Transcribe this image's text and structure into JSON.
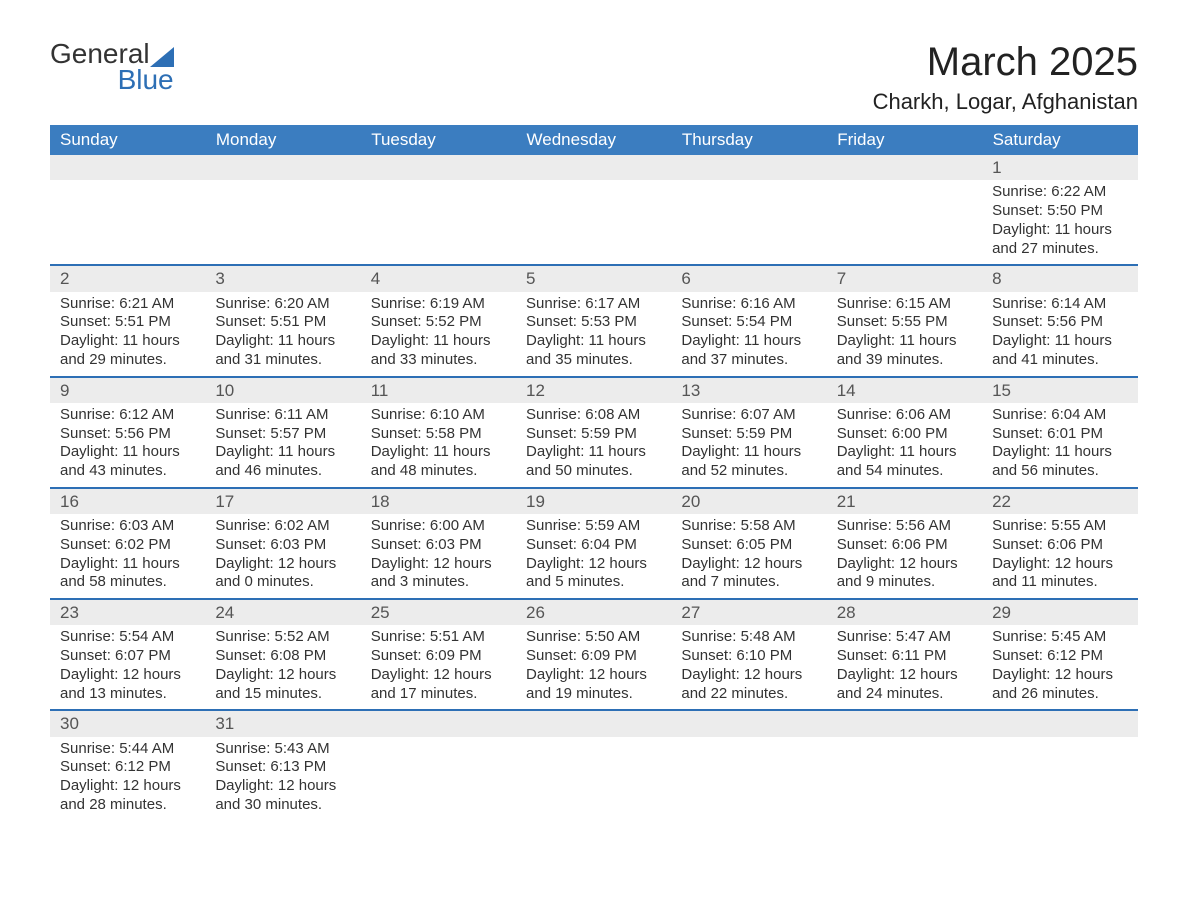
{
  "brand": {
    "general": "General",
    "blue": "Blue",
    "accent": "#2d6fb5"
  },
  "title": "March 2025",
  "location": "Charkh, Logar, Afghanistan",
  "weekdays": [
    "Sunday",
    "Monday",
    "Tuesday",
    "Wednesday",
    "Thursday",
    "Friday",
    "Saturday"
  ],
  "colors": {
    "header_bg": "#3b7dc0",
    "header_text": "#ffffff",
    "row_separator": "#2d6fb5",
    "daynum_bg": "#ececec",
    "text": "#333333",
    "background": "#ffffff"
  },
  "typography": {
    "title_fontsize": 40,
    "location_fontsize": 22,
    "weekday_fontsize": 17,
    "daynum_fontsize": 17,
    "cell_fontsize": 15
  },
  "weeks": [
    {
      "nums": [
        "",
        "",
        "",
        "",
        "",
        "",
        "1"
      ],
      "cells": [
        null,
        null,
        null,
        null,
        null,
        null,
        {
          "sunrise": "Sunrise: 6:22 AM",
          "sunset": "Sunset: 5:50 PM",
          "dl1": "Daylight: 11 hours",
          "dl2": "and 27 minutes."
        }
      ]
    },
    {
      "nums": [
        "2",
        "3",
        "4",
        "5",
        "6",
        "7",
        "8"
      ],
      "cells": [
        {
          "sunrise": "Sunrise: 6:21 AM",
          "sunset": "Sunset: 5:51 PM",
          "dl1": "Daylight: 11 hours",
          "dl2": "and 29 minutes."
        },
        {
          "sunrise": "Sunrise: 6:20 AM",
          "sunset": "Sunset: 5:51 PM",
          "dl1": "Daylight: 11 hours",
          "dl2": "and 31 minutes."
        },
        {
          "sunrise": "Sunrise: 6:19 AM",
          "sunset": "Sunset: 5:52 PM",
          "dl1": "Daylight: 11 hours",
          "dl2": "and 33 minutes."
        },
        {
          "sunrise": "Sunrise: 6:17 AM",
          "sunset": "Sunset: 5:53 PM",
          "dl1": "Daylight: 11 hours",
          "dl2": "and 35 minutes."
        },
        {
          "sunrise": "Sunrise: 6:16 AM",
          "sunset": "Sunset: 5:54 PM",
          "dl1": "Daylight: 11 hours",
          "dl2": "and 37 minutes."
        },
        {
          "sunrise": "Sunrise: 6:15 AM",
          "sunset": "Sunset: 5:55 PM",
          "dl1": "Daylight: 11 hours",
          "dl2": "and 39 minutes."
        },
        {
          "sunrise": "Sunrise: 6:14 AM",
          "sunset": "Sunset: 5:56 PM",
          "dl1": "Daylight: 11 hours",
          "dl2": "and 41 minutes."
        }
      ]
    },
    {
      "nums": [
        "9",
        "10",
        "11",
        "12",
        "13",
        "14",
        "15"
      ],
      "cells": [
        {
          "sunrise": "Sunrise: 6:12 AM",
          "sunset": "Sunset: 5:56 PM",
          "dl1": "Daylight: 11 hours",
          "dl2": "and 43 minutes."
        },
        {
          "sunrise": "Sunrise: 6:11 AM",
          "sunset": "Sunset: 5:57 PM",
          "dl1": "Daylight: 11 hours",
          "dl2": "and 46 minutes."
        },
        {
          "sunrise": "Sunrise: 6:10 AM",
          "sunset": "Sunset: 5:58 PM",
          "dl1": "Daylight: 11 hours",
          "dl2": "and 48 minutes."
        },
        {
          "sunrise": "Sunrise: 6:08 AM",
          "sunset": "Sunset: 5:59 PM",
          "dl1": "Daylight: 11 hours",
          "dl2": "and 50 minutes."
        },
        {
          "sunrise": "Sunrise: 6:07 AM",
          "sunset": "Sunset: 5:59 PM",
          "dl1": "Daylight: 11 hours",
          "dl2": "and 52 minutes."
        },
        {
          "sunrise": "Sunrise: 6:06 AM",
          "sunset": "Sunset: 6:00 PM",
          "dl1": "Daylight: 11 hours",
          "dl2": "and 54 minutes."
        },
        {
          "sunrise": "Sunrise: 6:04 AM",
          "sunset": "Sunset: 6:01 PM",
          "dl1": "Daylight: 11 hours",
          "dl2": "and 56 minutes."
        }
      ]
    },
    {
      "nums": [
        "16",
        "17",
        "18",
        "19",
        "20",
        "21",
        "22"
      ],
      "cells": [
        {
          "sunrise": "Sunrise: 6:03 AM",
          "sunset": "Sunset: 6:02 PM",
          "dl1": "Daylight: 11 hours",
          "dl2": "and 58 minutes."
        },
        {
          "sunrise": "Sunrise: 6:02 AM",
          "sunset": "Sunset: 6:03 PM",
          "dl1": "Daylight: 12 hours",
          "dl2": "and 0 minutes."
        },
        {
          "sunrise": "Sunrise: 6:00 AM",
          "sunset": "Sunset: 6:03 PM",
          "dl1": "Daylight: 12 hours",
          "dl2": "and 3 minutes."
        },
        {
          "sunrise": "Sunrise: 5:59 AM",
          "sunset": "Sunset: 6:04 PM",
          "dl1": "Daylight: 12 hours",
          "dl2": "and 5 minutes."
        },
        {
          "sunrise": "Sunrise: 5:58 AM",
          "sunset": "Sunset: 6:05 PM",
          "dl1": "Daylight: 12 hours",
          "dl2": "and 7 minutes."
        },
        {
          "sunrise": "Sunrise: 5:56 AM",
          "sunset": "Sunset: 6:06 PM",
          "dl1": "Daylight: 12 hours",
          "dl2": "and 9 minutes."
        },
        {
          "sunrise": "Sunrise: 5:55 AM",
          "sunset": "Sunset: 6:06 PM",
          "dl1": "Daylight: 12 hours",
          "dl2": "and 11 minutes."
        }
      ]
    },
    {
      "nums": [
        "23",
        "24",
        "25",
        "26",
        "27",
        "28",
        "29"
      ],
      "cells": [
        {
          "sunrise": "Sunrise: 5:54 AM",
          "sunset": "Sunset: 6:07 PM",
          "dl1": "Daylight: 12 hours",
          "dl2": "and 13 minutes."
        },
        {
          "sunrise": "Sunrise: 5:52 AM",
          "sunset": "Sunset: 6:08 PM",
          "dl1": "Daylight: 12 hours",
          "dl2": "and 15 minutes."
        },
        {
          "sunrise": "Sunrise: 5:51 AM",
          "sunset": "Sunset: 6:09 PM",
          "dl1": "Daylight: 12 hours",
          "dl2": "and 17 minutes."
        },
        {
          "sunrise": "Sunrise: 5:50 AM",
          "sunset": "Sunset: 6:09 PM",
          "dl1": "Daylight: 12 hours",
          "dl2": "and 19 minutes."
        },
        {
          "sunrise": "Sunrise: 5:48 AM",
          "sunset": "Sunset: 6:10 PM",
          "dl1": "Daylight: 12 hours",
          "dl2": "and 22 minutes."
        },
        {
          "sunrise": "Sunrise: 5:47 AM",
          "sunset": "Sunset: 6:11 PM",
          "dl1": "Daylight: 12 hours",
          "dl2": "and 24 minutes."
        },
        {
          "sunrise": "Sunrise: 5:45 AM",
          "sunset": "Sunset: 6:12 PM",
          "dl1": "Daylight: 12 hours",
          "dl2": "and 26 minutes."
        }
      ]
    },
    {
      "nums": [
        "30",
        "31",
        "",
        "",
        "",
        "",
        ""
      ],
      "cells": [
        {
          "sunrise": "Sunrise: 5:44 AM",
          "sunset": "Sunset: 6:12 PM",
          "dl1": "Daylight: 12 hours",
          "dl2": "and 28 minutes."
        },
        {
          "sunrise": "Sunrise: 5:43 AM",
          "sunset": "Sunset: 6:13 PM",
          "dl1": "Daylight: 12 hours",
          "dl2": "and 30 minutes."
        },
        null,
        null,
        null,
        null,
        null
      ]
    }
  ]
}
